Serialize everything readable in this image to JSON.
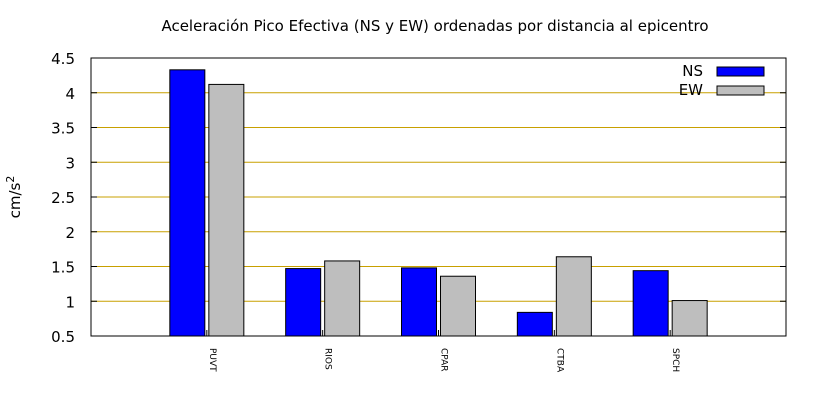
{
  "chart_data": {
    "type": "bar",
    "title": "Aceleración Pico Efectiva (NS y EW) ordenadas por distancia al epicentro",
    "ylabel": "cm/s",
    "ylabel_sup": "2",
    "xlabel": "",
    "categories": [
      "PUVT",
      "RIOS",
      "CPAR",
      "CTBA",
      "SPCH"
    ],
    "series": [
      {
        "name": "NS",
        "color": "#0000ff",
        "values": [
          4.33,
          1.47,
          1.48,
          0.84,
          1.44
        ]
      },
      {
        "name": "EW",
        "color": "#bebebe",
        "values": [
          4.12,
          1.58,
          1.36,
          1.64,
          1.01
        ]
      }
    ],
    "ylim": [
      0.5,
      4.5
    ],
    "yticks": [
      "0.5",
      "1",
      "1.5",
      "2",
      "2.5",
      "3",
      "3.5",
      "4",
      "4.5"
    ],
    "grid": true,
    "grid_color": "#c8a000",
    "legend_position": "top-right"
  }
}
